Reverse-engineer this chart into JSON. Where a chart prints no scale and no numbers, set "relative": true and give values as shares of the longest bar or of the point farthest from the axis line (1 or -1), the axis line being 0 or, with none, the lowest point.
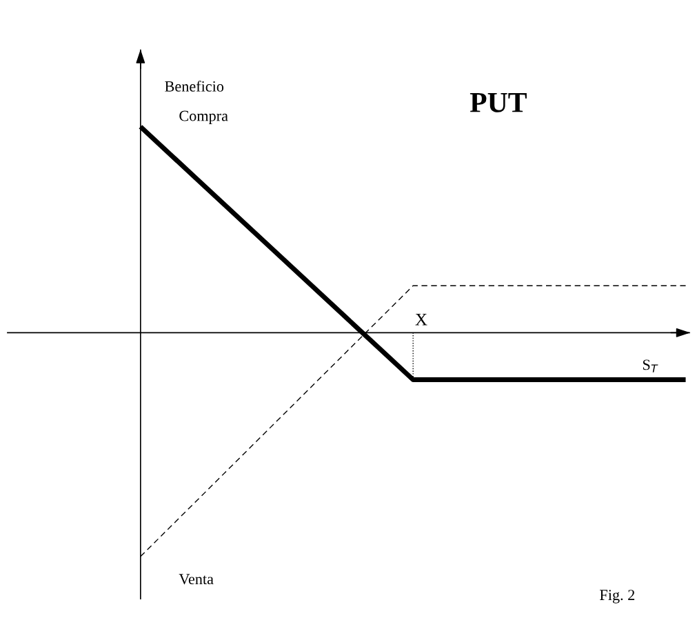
{
  "chart_data": {
    "type": "line",
    "title": "PUT",
    "xlabel": "S$_{T}$",
    "ylabel": "Beneficio",
    "relative": true,
    "legend": false,
    "categories": [
      null,
      null,
      null
    ],
    "series": [
      {
        "name": "Compra",
        "color": "#000000",
        "line_style": "solid",
        "values": [
          0.92,
          -0.21,
          -0.21
        ]
      },
      {
        "name": "Venta",
        "color": "#000000",
        "line_style": "dashed",
        "values": [
          -1,
          0.21,
          0.21
        ]
      }
    ],
    "annotations": [
      "X",
      "Fig. 2"
    ]
  }
}
